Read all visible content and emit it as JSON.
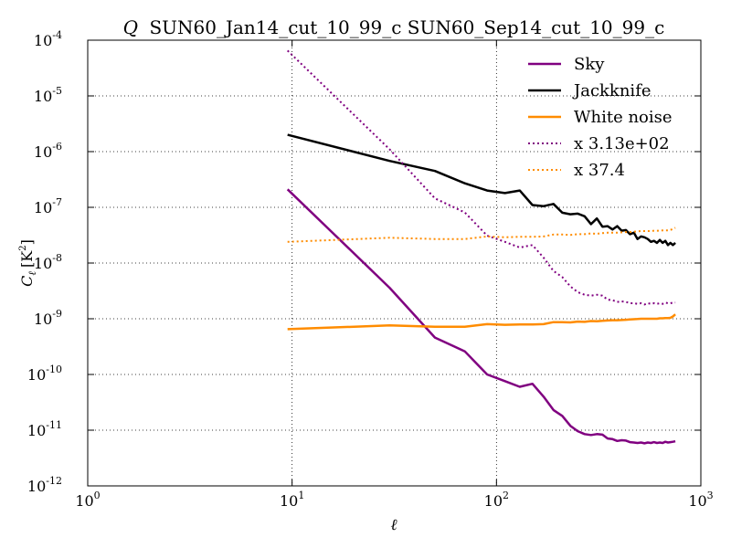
{
  "chart_data": {
    "type": "line",
    "title_symbol": "Q",
    "title_text": "SUN60_Jan14_cut_10_99_c SUN60_Sep14_cut_10_99_c",
    "xlabel": "ℓ",
    "ylabel_main": "C",
    "ylabel_sub": "ℓ",
    "ylabel_unit_open": "[K",
    "ylabel_unit_sup": "2",
    "ylabel_unit_close": "]",
    "xscale": "log",
    "yscale": "log",
    "xlim": [
      1,
      1000
    ],
    "ylim": [
      1e-12,
      0.0001
    ],
    "grid": true,
    "legend_position": "top-right",
    "x_ticks": [
      {
        "base": "10",
        "exp": "0",
        "value": 1
      },
      {
        "base": "10",
        "exp": "1",
        "value": 10
      },
      {
        "base": "10",
        "exp": "2",
        "value": 100
      },
      {
        "base": "10",
        "exp": "3",
        "value": 1000
      }
    ],
    "y_ticks": [
      {
        "base": "10",
        "exp": "-12",
        "value": 1e-12
      },
      {
        "base": "10",
        "exp": "-11",
        "value": 1e-11
      },
      {
        "base": "10",
        "exp": "-10",
        "value": 1e-10
      },
      {
        "base": "10",
        "exp": "-9",
        "value": 1e-09
      },
      {
        "base": "10",
        "exp": "-8",
        "value": 1e-08
      },
      {
        "base": "10",
        "exp": "-7",
        "value": 1e-07
      },
      {
        "base": "10",
        "exp": "-6",
        "value": 1e-06
      },
      {
        "base": "10",
        "exp": "-5",
        "value": 1e-05
      },
      {
        "base": "10",
        "exp": "-4",
        "value": 0.0001
      }
    ],
    "series": [
      {
        "name": "Sky",
        "color": "#800080",
        "style": "solid",
        "x": [
          9.5,
          30,
          50,
          70,
          90,
          110,
          130,
          150,
          170,
          190,
          210,
          230,
          250,
          270,
          290,
          310,
          330,
          350,
          370,
          390,
          410,
          430,
          450,
          470,
          490,
          510,
          530,
          550,
          570,
          590,
          610,
          630,
          650,
          670,
          690,
          710,
          730,
          750
        ],
        "y": [
          2.1e-07,
          3.6e-09,
          4.6e-10,
          2.6e-10,
          1e-10,
          7.6e-11,
          6e-11,
          6.8e-11,
          4e-11,
          2.3e-11,
          1.8e-11,
          1.2e-11,
          9.6e-12,
          8.5e-12,
          8.2e-12,
          8.5e-12,
          8.3e-12,
          7.1e-12,
          6.9e-12,
          6.4e-12,
          6.6e-12,
          6.5e-12,
          6.1e-12,
          6e-12,
          5.9e-12,
          6e-12,
          5.8e-12,
          6e-12,
          5.9e-12,
          6.1e-12,
          5.9e-12,
          6e-12,
          5.9e-12,
          6.2e-12,
          6e-12,
          6.1e-12,
          6.2e-12,
          6.3e-12
        ]
      },
      {
        "name": "Jackknife",
        "color": "#000000",
        "style": "solid",
        "x": [
          9.5,
          30,
          50,
          70,
          90,
          110,
          130,
          150,
          170,
          190,
          210,
          230,
          250,
          270,
          290,
          310,
          330,
          350,
          370,
          390,
          410,
          430,
          450,
          470,
          490,
          510,
          530,
          550,
          570,
          590,
          610,
          630,
          650,
          670,
          690,
          710,
          730,
          750
        ],
        "y": [
          2e-06,
          6.8e-07,
          4.5e-07,
          2.7e-07,
          2e-07,
          1.8e-07,
          2e-07,
          1.1e-07,
          1.05e-07,
          1.15e-07,
          8e-08,
          7.5e-08,
          7.7e-08,
          6.9e-08,
          5e-08,
          6.3e-08,
          4.5e-08,
          4.6e-08,
          4e-08,
          4.6e-08,
          3.8e-08,
          3.9e-08,
          3.3e-08,
          3.5e-08,
          2.7e-08,
          3e-08,
          2.9e-08,
          2.7e-08,
          2.4e-08,
          2.5e-08,
          2.3e-08,
          2.6e-08,
          2.3e-08,
          2.5e-08,
          2.1e-08,
          2.3e-08,
          2.1e-08,
          2.3e-08
        ]
      },
      {
        "name": "White noise",
        "color": "#ff8c00",
        "style": "solid",
        "x": [
          9.5,
          30,
          50,
          70,
          90,
          110,
          130,
          150,
          170,
          190,
          210,
          230,
          250,
          270,
          290,
          310,
          330,
          350,
          370,
          390,
          410,
          430,
          450,
          470,
          490,
          510,
          530,
          550,
          570,
          590,
          610,
          630,
          650,
          670,
          690,
          710,
          730,
          750
        ],
        "y": [
          6.5e-10,
          7.6e-10,
          7.2e-10,
          7.2e-10,
          8e-10,
          7.8e-10,
          7.9e-10,
          7.9e-10,
          8e-10,
          8.7e-10,
          8.7e-10,
          8.6e-10,
          8.9e-10,
          8.8e-10,
          9.1e-10,
          9e-10,
          9.2e-10,
          9.3e-10,
          9.4e-10,
          9.4e-10,
          9.5e-10,
          9.6e-10,
          9.7e-10,
          9.8e-10,
          9.9e-10,
          1e-09,
          1e-09,
          1e-09,
          1e-09,
          1e-09,
          1e-09,
          1.02e-09,
          1.02e-09,
          1.03e-09,
          1.03e-09,
          1.04e-09,
          1.1e-09,
          1.2e-09
        ]
      },
      {
        "name": "x 3.13e+02",
        "color": "#800080",
        "style": "dotted",
        "x": [
          9.5,
          30,
          50,
          70,
          90,
          110,
          130,
          150,
          170,
          190,
          210,
          230,
          250,
          270,
          290,
          310,
          330,
          350,
          370,
          390,
          410,
          430,
          450,
          470,
          490,
          510,
          530,
          550,
          570,
          590,
          610,
          630,
          650,
          670,
          690,
          710,
          730,
          750
        ],
        "y": [
          6.5e-05,
          1.1e-06,
          1.45e-07,
          8.1e-08,
          3.1e-08,
          2.4e-08,
          1.9e-08,
          2.1e-08,
          1.25e-08,
          7.2e-09,
          5.6e-09,
          3.8e-09,
          3e-09,
          2.7e-09,
          2.6e-09,
          2.7e-09,
          2.6e-09,
          2.2e-09,
          2.15e-09,
          2e-09,
          2.05e-09,
          2e-09,
          1.9e-09,
          1.9e-09,
          1.85e-09,
          1.9e-09,
          1.8e-09,
          1.9e-09,
          1.85e-09,
          1.9e-09,
          1.85e-09,
          1.9e-09,
          1.85e-09,
          1.95e-09,
          1.9e-09,
          1.9e-09,
          1.95e-09,
          1.95e-09
        ]
      },
      {
        "name": "x 37.4",
        "color": "#ff8c00",
        "style": "dotted",
        "x": [
          9.5,
          30,
          50,
          70,
          90,
          110,
          130,
          150,
          170,
          190,
          210,
          230,
          250,
          270,
          290,
          310,
          330,
          350,
          370,
          390,
          410,
          430,
          450,
          470,
          490,
          510,
          530,
          550,
          570,
          590,
          610,
          630,
          650,
          670,
          690,
          710,
          730,
          750
        ],
        "y": [
          2.4e-08,
          2.85e-08,
          2.7e-08,
          2.7e-08,
          3e-08,
          2.9e-08,
          2.95e-08,
          2.95e-08,
          3e-08,
          3.25e-08,
          3.25e-08,
          3.2e-08,
          3.3e-08,
          3.3e-08,
          3.4e-08,
          3.35e-08,
          3.45e-08,
          3.5e-08,
          3.5e-08,
          3.5e-08,
          3.55e-08,
          3.6e-08,
          3.6e-08,
          3.65e-08,
          3.7e-08,
          3.75e-08,
          3.75e-08,
          3.75e-08,
          3.75e-08,
          3.8e-08,
          3.8e-08,
          3.8e-08,
          3.85e-08,
          3.85e-08,
          3.85e-08,
          3.9e-08,
          4.1e-08,
          4.3e-08
        ]
      }
    ]
  }
}
